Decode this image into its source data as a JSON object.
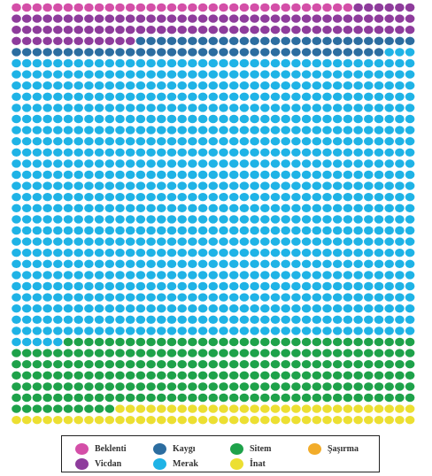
{
  "chart_data": {
    "type": "waffle",
    "grid": {
      "columns": 39,
      "rows": 38
    },
    "unit_note": "",
    "categories": [
      {
        "name": "Beklenti",
        "color": "#d44fa8",
        "count": 33
      },
      {
        "name": "Vicdan",
        "color": "#8e3c9c",
        "count": 96
      },
      {
        "name": "Kaygı",
        "color": "#2c6da0",
        "count": 63
      },
      {
        "name": "Merak",
        "color": "#1fb3e6",
        "count": 983
      },
      {
        "name": "Sitem",
        "color": "#1ea24a",
        "count": 239
      },
      {
        "name": "İnat",
        "color": "#ecdf32",
        "count": 229
      },
      {
        "name": "Şaşırma",
        "color": "#f2ac2a",
        "count": 36
      }
    ],
    "legend": {
      "position": "bottom",
      "layout_order": [
        [
          "Beklenti",
          "Kaygı",
          "Sitem",
          "Şaşırma"
        ],
        [
          "Vicdan",
          "Merak",
          "İnat"
        ]
      ]
    },
    "title": "",
    "xlabel": "",
    "ylabel": ""
  }
}
